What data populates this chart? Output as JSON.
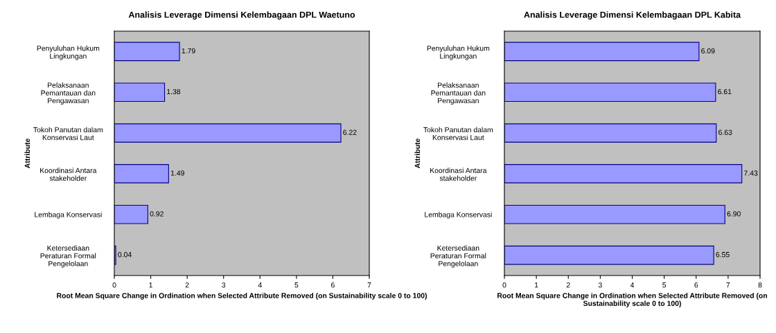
{
  "chart_data": [
    {
      "type": "bar",
      "orientation": "horizontal",
      "title": "Analisis Leverage Dimensi Kelembagaan DPL Waetuno",
      "xlabel": "Root Mean Square Change in Ordination when Selected Attribute Removed (on Sustainability scale 0 to 100)",
      "ylabel": "Attribute",
      "categories": [
        "Penyuluhan Hukum\nLingkungan",
        "Pelaksanaan\nPemantauan dan\nPengawasan",
        "Tokoh Panutan dalam\nKonservasi Laut",
        "Koordinasi Antara\nstakeholder",
        "Lembaga Konservasi",
        "Ketersediaan\nPeraturan Formal\nPengelolaan"
      ],
      "values": [
        1.79,
        1.38,
        6.22,
        1.49,
        0.92,
        0.04
      ],
      "value_labels": [
        "1.79",
        "1.38",
        "6.22",
        "1.49",
        "0.92",
        "0.04"
      ],
      "color": "#9999ff",
      "xlim": [
        0,
        7
      ],
      "xticks": [
        0,
        1,
        2,
        3,
        4,
        5,
        6,
        7
      ],
      "grid": false,
      "legend": false
    },
    {
      "type": "bar",
      "orientation": "horizontal",
      "title": "Analisis Leverage Dimensi Kelembagaan DPL Kabita",
      "xlabel": "Root Mean Square Change in Ordination when Selected Attribute Removed (on Sustainability scale 0 to 100)",
      "ylabel": "Attribute",
      "categories": [
        "Penyuluhan Hukum\nLingkungan",
        "Pelaksanaan\nPemantauan dan\nPengawasan",
        "Tokoh Panutan dalam\nKonservasi Laut",
        "Koordinasi Antara\nstakeholder",
        "Lembaga Konservasi",
        "Ketersediaan\nPeraturan Formal\nPengelolaan"
      ],
      "values": [
        6.09,
        6.61,
        6.63,
        7.43,
        6.9,
        6.55
      ],
      "value_labels": [
        "6.09",
        "6.61",
        "6.63",
        "7.43",
        "6.90",
        "6.55"
      ],
      "color": "#9999ff",
      "xlim": [
        0,
        8
      ],
      "xticks": [
        0,
        1,
        2,
        3,
        4,
        5,
        6,
        7,
        8
      ],
      "grid": false,
      "legend": false
    }
  ]
}
